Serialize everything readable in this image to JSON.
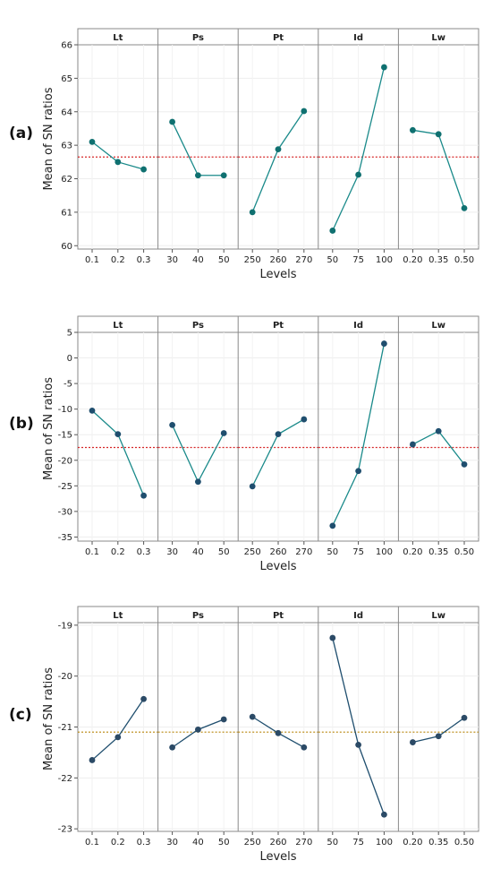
{
  "chart_data": [
    {
      "type": "line",
      "panel_label": "(a)",
      "ylabel": "Mean of SN ratios",
      "xlabel": "Levels",
      "ylim": [
        59.9,
        66.0
      ],
      "yticks": [
        60,
        61,
        62,
        63,
        64,
        65,
        66
      ],
      "mean_line": 62.65,
      "line_color": "#1a8a8a",
      "point_color": "#0f7070",
      "mean_color": "#d62728",
      "facets": [
        {
          "name": "Lt",
          "x": [
            "0.1",
            "0.2",
            "0.3"
          ],
          "y": [
            63.1,
            62.5,
            62.28
          ]
        },
        {
          "name": "Ps",
          "x": [
            "30",
            "40",
            "50"
          ],
          "y": [
            63.7,
            62.1,
            62.1
          ]
        },
        {
          "name": "Pt",
          "x": [
            "250",
            "260",
            "270"
          ],
          "y": [
            61.0,
            62.88,
            64.02
          ]
        },
        {
          "name": "Id",
          "x": [
            "50",
            "75",
            "100"
          ],
          "y": [
            60.45,
            62.12,
            65.33
          ]
        },
        {
          "name": "Lw",
          "x": [
            "0.20",
            "0.35",
            "0.50"
          ],
          "y": [
            63.45,
            63.33,
            61.12
          ]
        }
      ]
    },
    {
      "type": "line",
      "panel_label": "(b)",
      "ylabel": "Mean of SN ratios",
      "xlabel": "Levels",
      "ylim": [
        -35.8,
        5.0
      ],
      "yticks": [
        5,
        0,
        -5,
        -10,
        -15,
        -20,
        -25,
        -30,
        -35
      ],
      "mean_line": -17.5,
      "line_color": "#1a8a8a",
      "point_color": "#1f4e6e",
      "mean_color": "#d62728",
      "facets": [
        {
          "name": "Lt",
          "x": [
            "0.1",
            "0.2",
            "0.3"
          ],
          "y": [
            -10.3,
            -14.9,
            -26.9
          ]
        },
        {
          "name": "Ps",
          "x": [
            "30",
            "40",
            "50"
          ],
          "y": [
            -13.1,
            -24.2,
            -14.7
          ]
        },
        {
          "name": "Pt",
          "x": [
            "250",
            "260",
            "270"
          ],
          "y": [
            -25.1,
            -14.9,
            -12.0
          ]
        },
        {
          "name": "Id",
          "x": [
            "50",
            "75",
            "100"
          ],
          "y": [
            -32.8,
            -22.1,
            2.8
          ]
        },
        {
          "name": "Lw",
          "x": [
            "0.20",
            "0.35",
            "0.50"
          ],
          "y": [
            -16.9,
            -14.3,
            -20.8
          ]
        }
      ]
    },
    {
      "type": "line",
      "panel_label": "(c)",
      "ylabel": "Mean of SN ratios",
      "xlabel": "Levels",
      "ylim": [
        -23.05,
        -18.95
      ],
      "yticks": [
        -19,
        -20,
        -21,
        -22,
        -23
      ],
      "mean_line": -21.1,
      "line_color": "#1f4e6e",
      "point_color": "#2b4a66",
      "mean_color": "#b8860b",
      "facets": [
        {
          "name": "Lt",
          "x": [
            "0.1",
            "0.2",
            "0.3"
          ],
          "y": [
            -21.65,
            -21.2,
            -20.45
          ]
        },
        {
          "name": "Ps",
          "x": [
            "30",
            "40",
            "50"
          ],
          "y": [
            -21.4,
            -21.05,
            -20.85
          ]
        },
        {
          "name": "Pt",
          "x": [
            "250",
            "260",
            "270"
          ],
          "y": [
            -20.8,
            -21.12,
            -21.4
          ]
        },
        {
          "name": "Id",
          "x": [
            "50",
            "75",
            "100"
          ],
          "y": [
            -19.25,
            -21.35,
            -22.72
          ]
        },
        {
          "name": "Lw",
          "x": [
            "0.20",
            "0.35",
            "0.50"
          ],
          "y": [
            -21.3,
            -21.18,
            -20.82
          ]
        }
      ]
    }
  ]
}
